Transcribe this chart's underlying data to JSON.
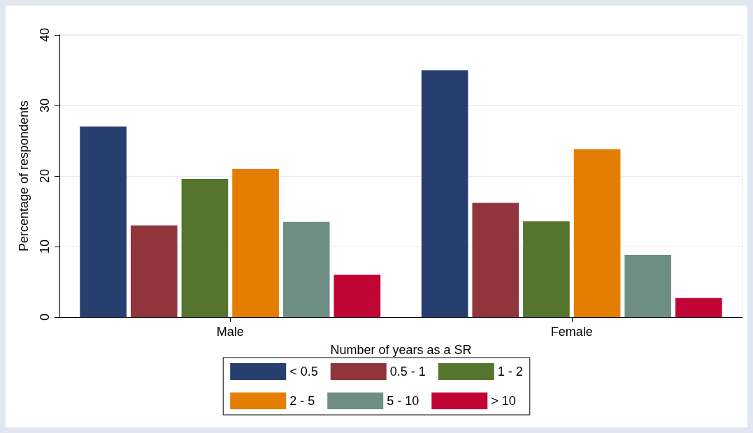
{
  "chart_data": {
    "type": "bar",
    "xlabel": "Number of years as a SR",
    "ylabel": "Percentage of respondents",
    "categories": [
      "Male",
      "Female"
    ],
    "series": [
      {
        "name": "< 0.5",
        "color": "#263f6e",
        "values": [
          27.0,
          35.0
        ]
      },
      {
        "name": "0.5 - 1",
        "color": "#90353b",
        "values": [
          13.0,
          16.2
        ]
      },
      {
        "name": "1 - 2",
        "color": "#55752f",
        "values": [
          19.6,
          13.6
        ]
      },
      {
        "name": "2 - 5",
        "color": "#e37e00",
        "values": [
          21.0,
          23.8
        ]
      },
      {
        "name": "5 - 10",
        "color": "#6e8e84",
        "values": [
          13.5,
          8.8
        ]
      },
      {
        "name": "> 10",
        "color": "#c10534",
        "values": [
          6.0,
          2.7
        ]
      }
    ],
    "ylim": [
      0,
      40
    ],
    "yticks": [
      0,
      10,
      20,
      30,
      40
    ],
    "grid": "y",
    "legend": "bottom"
  }
}
